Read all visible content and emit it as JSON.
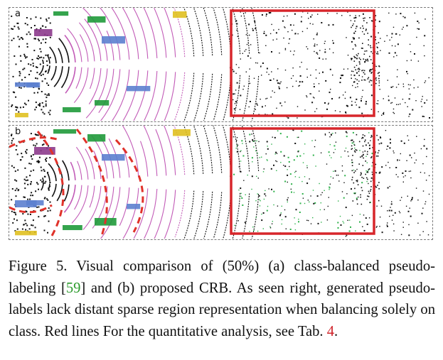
{
  "figure": {
    "panels": [
      {
        "label": "a",
        "highlight_color": "#d7262b"
      },
      {
        "label": "b",
        "highlight_color": "#d7262b"
      }
    ],
    "colors": {
      "points": "#111111",
      "pseudo_label_green": "#2db14a",
      "road_magenta": "#c25bb7",
      "car_blue": "#5c7fcf",
      "vegetation_green": "#1f9a3a",
      "sidewalk_yellow": "#e0c020",
      "dashed_red": "#e0322a"
    }
  },
  "caption": {
    "text_before_cite": "Figure 5. Visual comparison of (50%) (a) class-balanced pseudo-labeling [",
    "cite": "59",
    "text_after_cite": "] and (b) proposed CRB. As seen right, generated pseudo-labels lack distant sparse region representation when balancing solely on class. Red lines For the quantitative analysis, see Tab. ",
    "tab_ref": "4",
    "end": "."
  }
}
